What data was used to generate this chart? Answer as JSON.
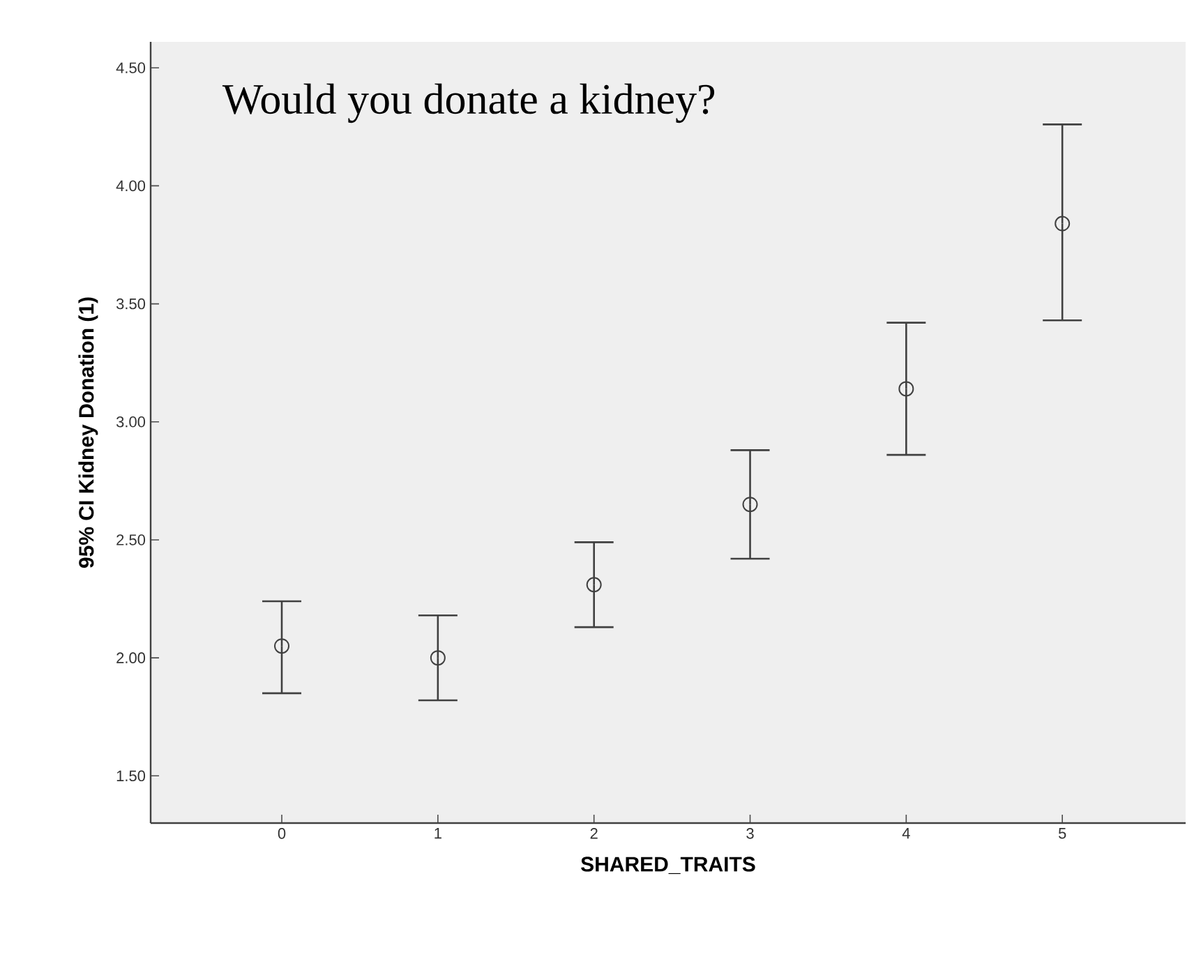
{
  "chart_data": {
    "type": "scatter",
    "title": "Would you donate a kidney?",
    "xlabel": "SHARED_TRAITS",
    "ylabel": "95% CI Kidney Donation (1)",
    "x": [
      0,
      1,
      2,
      3,
      4,
      5
    ],
    "values": [
      2.05,
      2.0,
      2.31,
      2.65,
      3.14,
      3.84
    ],
    "errors": [
      [
        1.85,
        2.24
      ],
      [
        1.82,
        2.18
      ],
      [
        2.13,
        2.49
      ],
      [
        2.42,
        2.88
      ],
      [
        2.86,
        3.42
      ],
      [
        3.43,
        4.26
      ]
    ],
    "color": "#404040",
    "marker": "circle",
    "xlim": [
      -0.84,
      5.79
    ],
    "ylim": [
      1.3,
      4.61
    ],
    "xticks": [
      0,
      1,
      2,
      3,
      4,
      5
    ],
    "yticks": [
      {
        "value": 1.5,
        "label": "1.50"
      },
      {
        "value": 2.0,
        "label": "2.00"
      },
      {
        "value": 2.5,
        "label": "2.50"
      },
      {
        "value": 3.0,
        "label": "3.00"
      },
      {
        "value": 3.5,
        "label": "3.50"
      },
      {
        "value": 4.0,
        "label": "4.00"
      },
      {
        "value": 4.5,
        "label": "4.50"
      }
    ]
  }
}
